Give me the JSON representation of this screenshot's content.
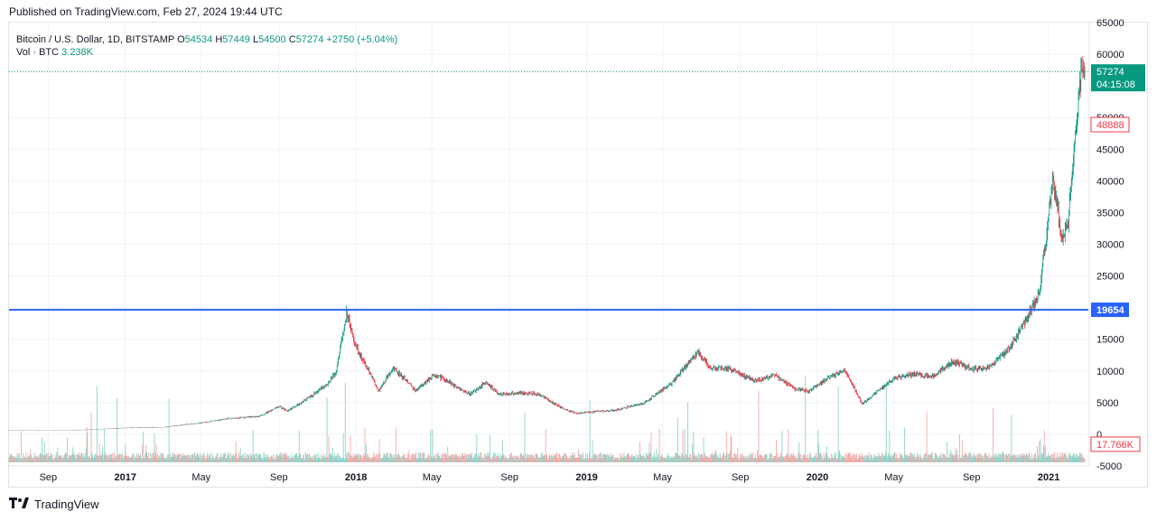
{
  "header": {
    "published": "Published on TradingView.com, Feb 27, 2024 19:44 UTC"
  },
  "legend": {
    "symbol": "Bitcoin / U.S. Dollar, 1D, BITSTAMP",
    "open_k": "O",
    "open": "54534",
    "high_k": "H",
    "high": "57449",
    "low_k": "L",
    "low": "54500",
    "close_k": "C",
    "close": "57274",
    "change": "+2750 (+5.04%)",
    "vol_label": "Vol · BTC",
    "vol_value": "3.238K"
  },
  "brand": {
    "name": "TradingView",
    "logo_icon": "tradingview-logo-icon"
  },
  "colors": {
    "up": "#089981",
    "down": "#f23645",
    "hline": "#2962ff",
    "grid": "#f0f3fa",
    "vol_up": "#8fd3c9",
    "vol_down": "#f7a9a7"
  },
  "chart_data": {
    "type": "candlestick",
    "y_axis_ticks": [
      "65000",
      "60000",
      "50000",
      "45000",
      "40000",
      "35000",
      "30000",
      "25000",
      "15000",
      "10000",
      "5000",
      "0",
      "-5000"
    ],
    "x_axis_labels": [
      "Sep",
      "2017",
      "May",
      "Sep",
      "2018",
      "May",
      "Sep",
      "2019",
      "May",
      "Sep",
      "2020",
      "May",
      "Sep",
      "2021"
    ],
    "x_axis_dates": [
      "2016-09-01",
      "2017-01-01",
      "2017-05-01",
      "2017-09-01",
      "2018-01-01",
      "2018-05-01",
      "2018-09-01",
      "2019-01-01",
      "2019-05-01",
      "2019-09-01",
      "2020-01-01",
      "2020-05-01",
      "2020-09-01",
      "2021-01-01"
    ],
    "ylim": [
      -5000,
      65000
    ],
    "horizontal_line": {
      "value": 19654,
      "label": "19654"
    },
    "last_price": {
      "value": 57274,
      "label": "57274",
      "countdown": "04:15:08"
    },
    "red_level": {
      "value": 48888,
      "label": "48888"
    },
    "volume_label": "17.766K",
    "series": [
      {
        "name": "Bitcoin / U.S. Dollar",
        "x": [
          "2016-07-01",
          "2016-09-01",
          "2016-11-01",
          "2017-01-01",
          "2017-03-01",
          "2017-05-01",
          "2017-06-15",
          "2017-08-01",
          "2017-09-01",
          "2017-09-15",
          "2017-10-15",
          "2017-11-15",
          "2017-12-01",
          "2017-12-17",
          "2018-01-01",
          "2018-02-06",
          "2018-03-01",
          "2018-04-06",
          "2018-05-05",
          "2018-06-30",
          "2018-07-25",
          "2018-08-15",
          "2018-09-15",
          "2018-10-15",
          "2018-11-25",
          "2018-12-15",
          "2019-01-15",
          "2019-02-15",
          "2019-04-01",
          "2019-05-15",
          "2019-06-26",
          "2019-07-15",
          "2019-08-15",
          "2019-09-25",
          "2019-10-26",
          "2019-11-25",
          "2019-12-18",
          "2020-01-15",
          "2020-02-13",
          "2020-03-12",
          "2020-04-01",
          "2020-05-01",
          "2020-06-01",
          "2020-07-01",
          "2020-08-01",
          "2020-09-05",
          "2020-10-01",
          "2020-11-01",
          "2020-12-01",
          "2020-12-17",
          "2021-01-08",
          "2021-01-22",
          "2021-02-01",
          "2021-02-21",
          "2021-02-27"
        ],
        "values": [
          650,
          600,
          700,
          1000,
          1100,
          1800,
          2500,
          2800,
          4400,
          3700,
          5500,
          7800,
          10000,
          19300,
          13800,
          6900,
          10500,
          6900,
          9500,
          6300,
          8200,
          6300,
          6500,
          6400,
          4000,
          3300,
          3600,
          3800,
          4900,
          8000,
          13000,
          10500,
          10300,
          8400,
          9300,
          7200,
          6800,
          8700,
          10300,
          4800,
          6400,
          8800,
          9500,
          9100,
          11500,
          10200,
          10700,
          13700,
          19000,
          22000,
          40500,
          31000,
          33500,
          57000,
          57274
        ]
      }
    ]
  }
}
